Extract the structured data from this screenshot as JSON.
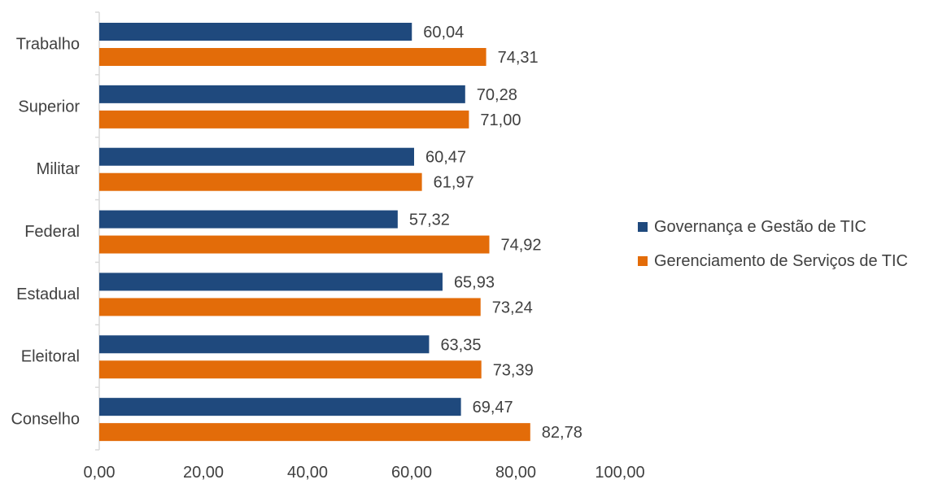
{
  "chart_data": {
    "type": "bar",
    "orientation": "horizontal",
    "categories": [
      "Trabalho",
      "Superior",
      "Militar",
      "Federal",
      "Estadual",
      "Eleitoral",
      "Conselho"
    ],
    "series": [
      {
        "name": "Governança e Gestão de TIC",
        "color": "#1f497d",
        "values": [
          60.04,
          70.28,
          60.47,
          57.32,
          65.93,
          63.35,
          69.47
        ],
        "labels": [
          "60,04",
          "70,28",
          "60,47",
          "57,32",
          "65,93",
          "63,35",
          "69,47"
        ]
      },
      {
        "name": "Gerenciamento de Serviços de TIC",
        "color": "#e36c09",
        "values": [
          74.31,
          71.0,
          61.97,
          74.92,
          73.24,
          73.39,
          82.78
        ],
        "labels": [
          "74,31",
          "71,00",
          "61,97",
          "74,92",
          "73,24",
          "73,39",
          "82,78"
        ]
      }
    ],
    "x_ticks": [
      "0,00",
      "20,00",
      "40,00",
      "60,00",
      "80,00",
      "100,00"
    ],
    "xlim": [
      0,
      100
    ],
    "grid": false,
    "legend_position": "right",
    "title": "",
    "xlabel": "",
    "ylabel": ""
  }
}
